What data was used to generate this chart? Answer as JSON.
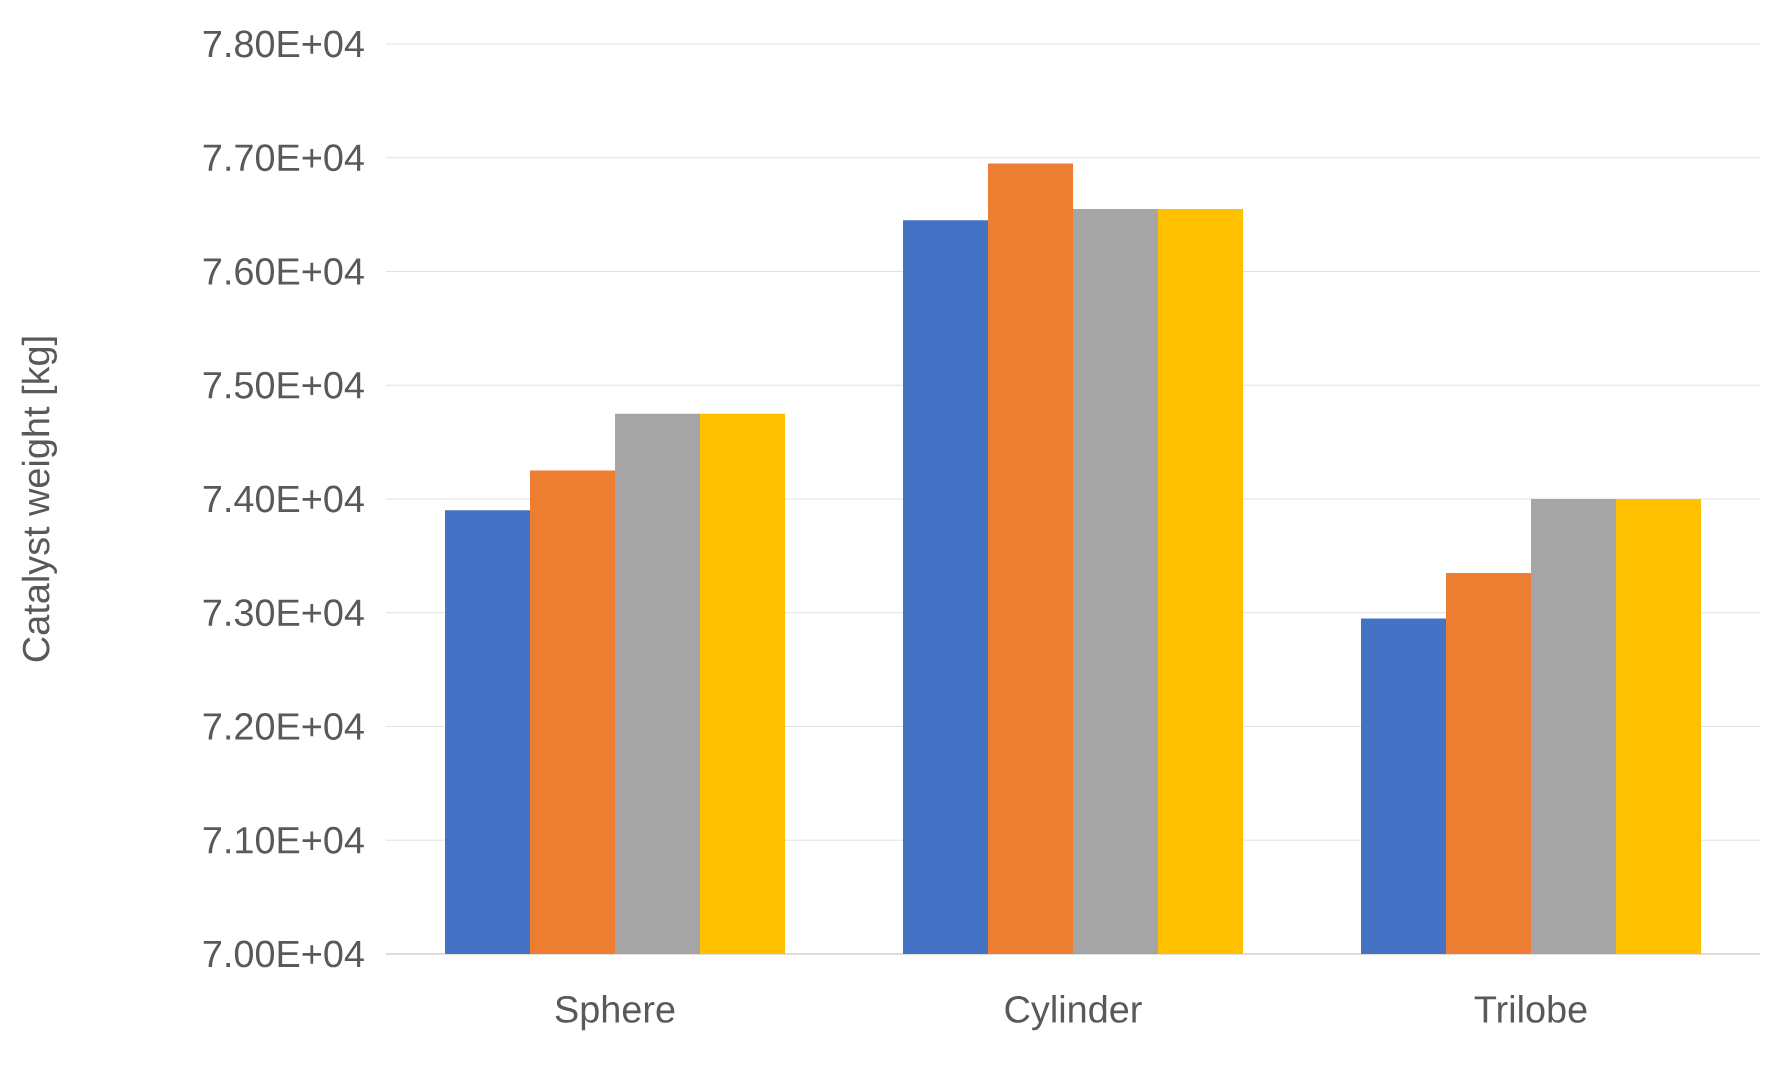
{
  "chart_data": {
    "type": "bar",
    "ylabel": "Catalyst weight [kg]",
    "categories": [
      "Sphere",
      "Cylinder",
      "Trilobe"
    ],
    "series": [
      {
        "color": "#4472c4",
        "values": [
          73900,
          76450,
          72950
        ]
      },
      {
        "color": "#ed7d31",
        "values": [
          74250,
          76950,
          73350
        ]
      },
      {
        "color": "#a5a5a5",
        "values": [
          74750,
          76550,
          74000
        ]
      },
      {
        "color": "#ffc000",
        "values": [
          74750,
          76550,
          74000
        ]
      }
    ],
    "ylim": [
      70000,
      78000
    ],
    "yticks": [
      {
        "value": 70000,
        "label": "7.00E+04"
      },
      {
        "value": 71000,
        "label": "7.10E+04"
      },
      {
        "value": 72000,
        "label": "7.20E+04"
      },
      {
        "value": 73000,
        "label": "7.30E+04"
      },
      {
        "value": 74000,
        "label": "7.40E+04"
      },
      {
        "value": 75000,
        "label": "7.50E+04"
      },
      {
        "value": 76000,
        "label": "7.60E+04"
      },
      {
        "value": 77000,
        "label": "7.70E+04"
      },
      {
        "value": 78000,
        "label": "7.80E+04"
      }
    ],
    "grid": "y"
  }
}
